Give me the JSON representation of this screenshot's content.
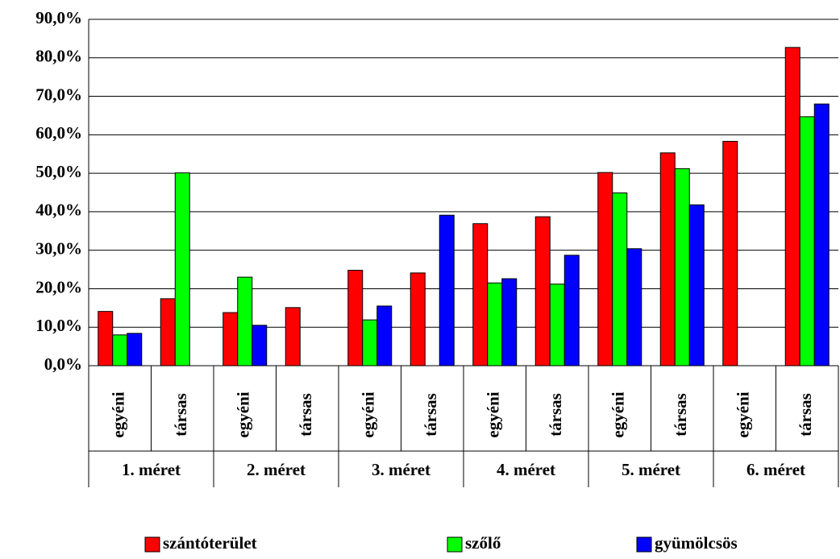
{
  "chart_data": {
    "type": "bar",
    "groups": [
      "1. méret",
      "2. méret",
      "3. méret",
      "4. méret",
      "5. méret",
      "6. méret"
    ],
    "categories": [
      "egyéni",
      "társas",
      "egyéni",
      "társas",
      "egyéni",
      "társas",
      "egyéni",
      "társas",
      "egyéni",
      "társas",
      "egyéni",
      "társas"
    ],
    "series": [
      {
        "name": "szántóterület",
        "color": "#ff0000",
        "values": [
          14.1,
          17.4,
          13.8,
          15.1,
          24.8,
          24.1,
          36.9,
          38.7,
          50.2,
          55.3,
          58.3,
          82.7
        ]
      },
      {
        "name": "szőlő",
        "color": "#00ff00",
        "values": [
          8.0,
          50.1,
          23.0,
          null,
          11.9,
          null,
          21.5,
          21.2,
          44.9,
          51.2,
          null,
          64.7
        ]
      },
      {
        "name": "gyümölcsös",
        "color": "#0000ff",
        "values": [
          8.4,
          null,
          10.5,
          null,
          15.5,
          39.1,
          22.6,
          28.7,
          30.4,
          41.8,
          null,
          68.0
        ]
      }
    ],
    "ylim": [
      0,
      90
    ],
    "yticks": [
      {
        "value": 0,
        "label": "0,0%"
      },
      {
        "value": 10,
        "label": "10,0%"
      },
      {
        "value": 20,
        "label": "20,0%"
      },
      {
        "value": 30,
        "label": "30,0%"
      },
      {
        "value": 40,
        "label": "40,0%"
      },
      {
        "value": 50,
        "label": "50,0%"
      },
      {
        "value": 60,
        "label": "60,0%"
      },
      {
        "value": 70,
        "label": "70,0%"
      },
      {
        "value": 80,
        "label": "80,0%"
      },
      {
        "value": 90,
        "label": "90,0%"
      }
    ],
    "grid": true,
    "legend": "bottom"
  }
}
